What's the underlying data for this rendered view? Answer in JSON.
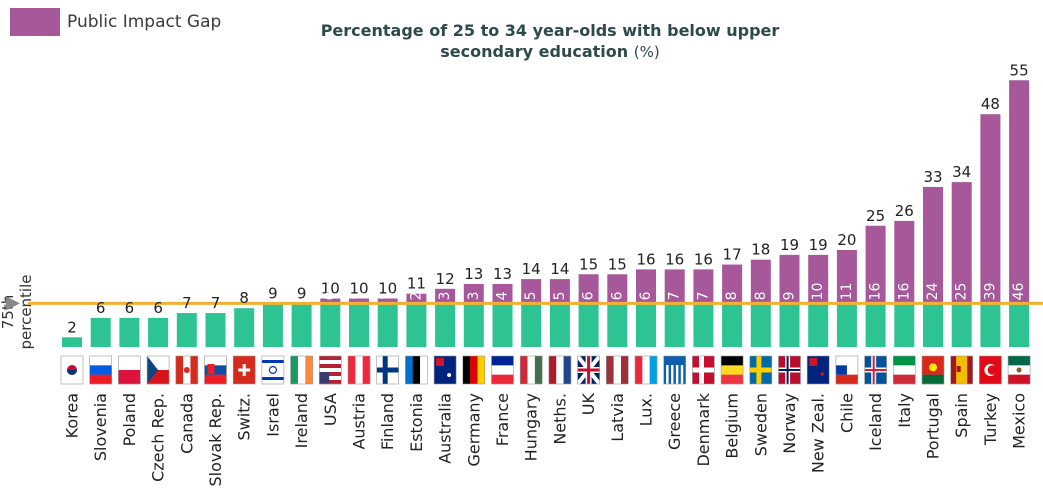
{
  "legend": {
    "label": "Public Impact Gap",
    "color": "#a6589a"
  },
  "title": {
    "main": "Percentage of 25 to 34 year-olds with below upper secondary education",
    "unit": "(%)"
  },
  "ylabel": "75th percentile",
  "colors": {
    "green": "#2ec393",
    "purple": "#a6589a",
    "threshold": "#f2b134",
    "marker": "#888888"
  },
  "chart_data": {
    "type": "bar",
    "title": "Percentage of 25 to 34 year-olds with below upper secondary education (%)",
    "threshold": 9,
    "threshold_label": "75th percentile",
    "categories": [
      "Korea",
      "Slovenia",
      "Poland",
      "Czech Rep.",
      "Canada",
      "Slovak Rep.",
      "Switz.",
      "Israel",
      "Ireland",
      "USA",
      "Austria",
      "Finland",
      "Estonia",
      "Australia",
      "Germany",
      "France",
      "Hungary",
      "Neths.",
      "UK",
      "Latvia",
      "Lux.",
      "Greece",
      "Denmark",
      "Belgium",
      "Sweden",
      "Norway",
      "New Zeal.",
      "Chile",
      "Iceland",
      "Italy",
      "Portugal",
      "Spain",
      "Turkey",
      "Mexico"
    ],
    "values": [
      2,
      6,
      6,
      6,
      7,
      7,
      8,
      9,
      9,
      10,
      10,
      10,
      11,
      12,
      13,
      13,
      14,
      14,
      15,
      15,
      16,
      16,
      16,
      17,
      18,
      19,
      19,
      20,
      25,
      26,
      33,
      34,
      48,
      55
    ],
    "gap": [
      null,
      null,
      null,
      null,
      null,
      null,
      null,
      null,
      null,
      0,
      1,
      1,
      2,
      3,
      3,
      4,
      5,
      5,
      6,
      6,
      6,
      7,
      7,
      8,
      8,
      9,
      10,
      11,
      16,
      16,
      24,
      25,
      39,
      46
    ],
    "series": [
      {
        "name": "Public Impact Gap",
        "values": [
          null,
          null,
          null,
          null,
          null,
          null,
          null,
          null,
          null,
          0,
          1,
          1,
          2,
          3,
          3,
          4,
          5,
          5,
          6,
          6,
          6,
          7,
          7,
          8,
          8,
          9,
          10,
          11,
          16,
          16,
          24,
          25,
          39,
          46
        ]
      }
    ],
    "flags": [
      "kr",
      "si",
      "pl",
      "cz",
      "ca",
      "sk",
      "ch",
      "il",
      "ie",
      "us",
      "at",
      "fi",
      "ee",
      "au",
      "de",
      "fr",
      "hu",
      "nl",
      "gb",
      "lv",
      "lu",
      "gr",
      "dk",
      "be",
      "se",
      "no",
      "nz",
      "cl",
      "is",
      "it",
      "pt",
      "es",
      "tr",
      "mx"
    ],
    "ylim": [
      0,
      55
    ]
  }
}
